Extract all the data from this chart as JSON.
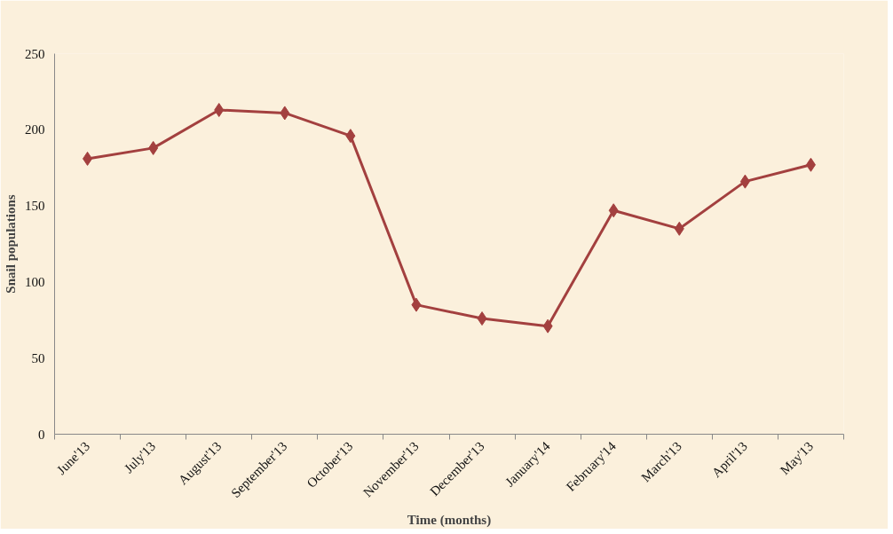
{
  "chart_data": {
    "type": "line",
    "xlabel": "Time (months)",
    "ylabel": "Snail populations",
    "categories": [
      "June'13",
      "July'13",
      "August'13",
      "September'13",
      "October'13",
      "November'13",
      "December'13",
      "January'14",
      "February'14",
      "March'13",
      "April'13",
      "May'13"
    ],
    "series": [
      {
        "color": "#a3403f",
        "values": [
          181,
          188,
          213,
          211,
          196,
          85,
          76,
          71,
          147,
          135,
          166,
          177
        ]
      }
    ],
    "ylim": [
      0,
      250
    ],
    "yticks": [
      0,
      50,
      100,
      150,
      200,
      250
    ],
    "grid": false,
    "marker": "diamond",
    "line_style": "solid"
  }
}
